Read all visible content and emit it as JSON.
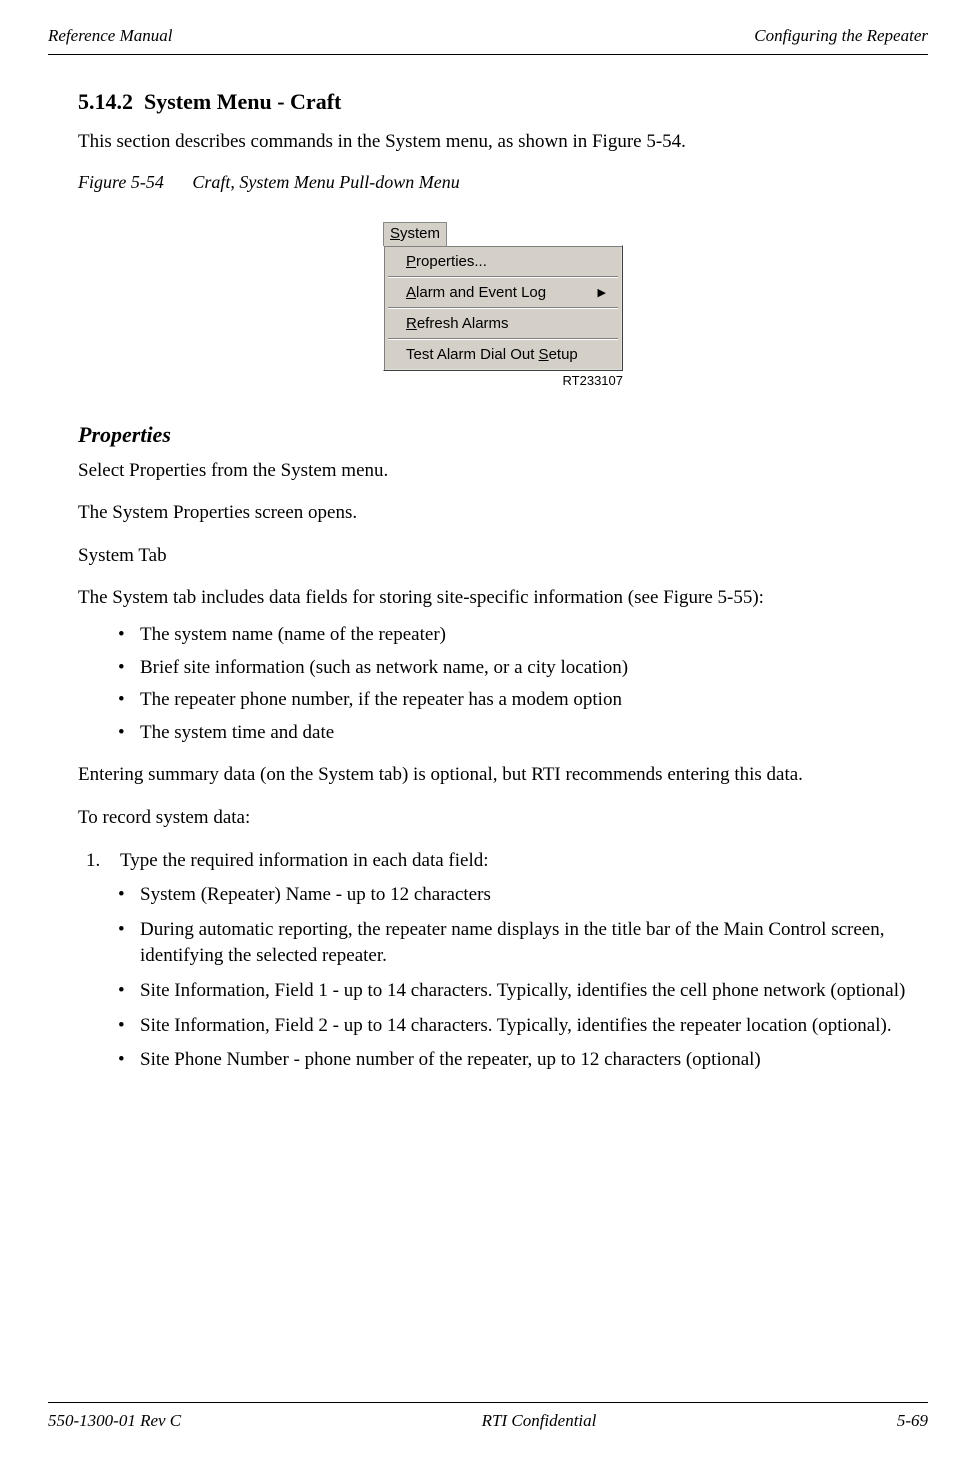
{
  "header": {
    "left": "Reference Manual",
    "right": "Configuring the Repeater"
  },
  "section": {
    "number": "5.14.2",
    "title": "System Menu - Craft",
    "intro": "This section describes commands in the System menu, as shown in Figure 5-54."
  },
  "figure": {
    "label": "Figure 5-54",
    "caption": "Craft, System Menu Pull-down Menu",
    "ref": "RT233107"
  },
  "menu": {
    "title_pre": "S",
    "title_rest": "ystem",
    "items": [
      {
        "pre": "P",
        "rest": "roperties...",
        "arrow": false
      },
      {
        "pre": "A",
        "rest": "larm and Event Log",
        "arrow": true
      },
      {
        "pre": "R",
        "rest": "efresh Alarms",
        "arrow": false
      }
    ],
    "last": {
      "text_a": "Test Alarm Dial Out ",
      "ul": "S",
      "text_b": "etup"
    }
  },
  "properties": {
    "heading": "Properties",
    "p1": "Select Properties from the System menu.",
    "p2": "The System Properties screen opens.",
    "p3": "System Tab",
    "p4": "The System tab includes data fields for storing site-specific information (see Figure 5-55):",
    "bullets": [
      "The system name (name of the repeater)",
      "Brief site information (such as network name, or a city location)",
      "The repeater phone number, if the repeater has a modem option",
      "The system time and date"
    ],
    "p5": "Entering summary data (on the System tab) is optional, but RTI recommends entering this data.",
    "p6": "To record system data:",
    "step1": "Type the required information in each data field:",
    "sub_bullets": [
      "System (Repeater) Name - up to 12 characters",
      "During automatic reporting, the repeater name displays in the title bar of the Main Control screen, identifying the selected repeater.",
      "Site Information, Field 1 - up to 14 characters. Typically, identifies the cell phone network (optional)",
      "Site Information, Field 2 - up to 14 characters. Typically, identifies the repeater location (optional).",
      "Site Phone Number - phone number of the repeater, up to 12 characters (optional)"
    ]
  },
  "footer": {
    "left": "550-1300-01 Rev C",
    "center": "RTI Confidential",
    "right": "5-69"
  }
}
